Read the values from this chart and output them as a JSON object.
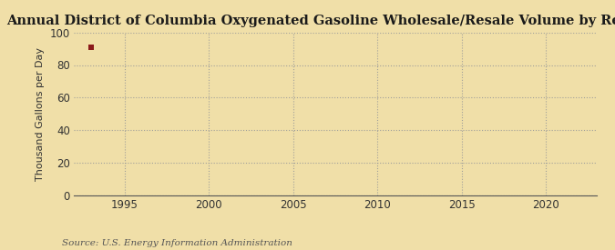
{
  "title": "Annual District of Columbia Oxygenated Gasoline Wholesale/Resale Volume by Refiners",
  "ylabel": "Thousand Gallons per Day",
  "source": "Source: U.S. Energy Information Administration",
  "background_color": "#f0dfa8",
  "plot_background_color": "#f0dfa8",
  "data_x": [
    1993
  ],
  "data_y": [
    91
  ],
  "marker_color": "#8b1a1a",
  "marker_size": 4,
  "xlim": [
    1992,
    2023
  ],
  "ylim": [
    0,
    100
  ],
  "xticks": [
    1995,
    2000,
    2005,
    2010,
    2015,
    2020
  ],
  "yticks": [
    0,
    20,
    40,
    60,
    80,
    100
  ],
  "grid_color": "#999999",
  "title_fontsize": 10.5,
  "label_fontsize": 8,
  "tick_fontsize": 8.5,
  "source_fontsize": 7.5
}
